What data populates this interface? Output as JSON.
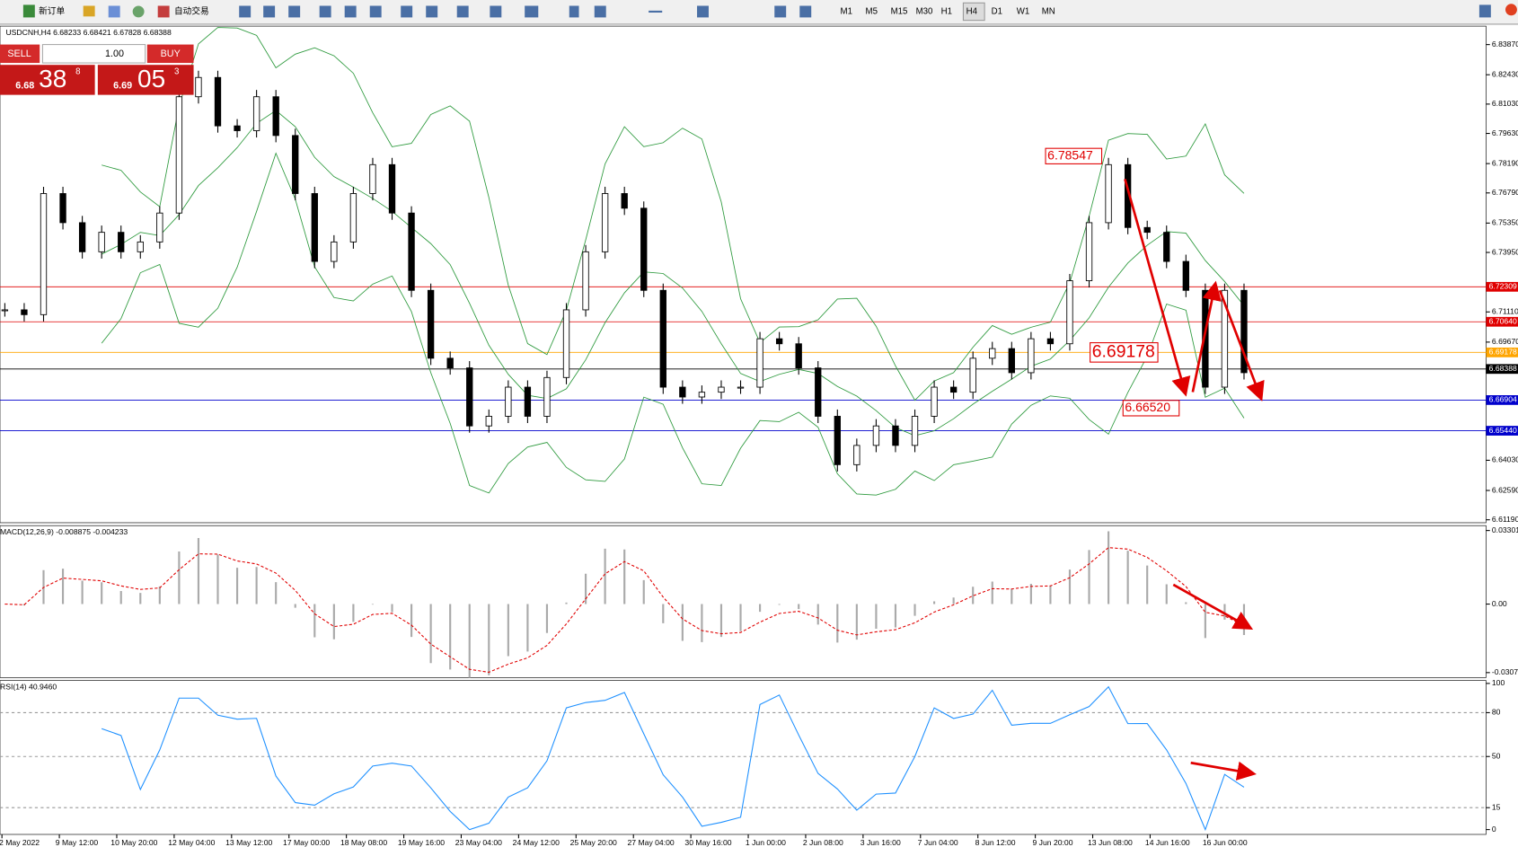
{
  "toolbar": {
    "new_order": "新订单",
    "auto_trading": "自动交易",
    "timeframes": [
      "M1",
      "M5",
      "M15",
      "M30",
      "H1",
      "H4",
      "D1",
      "W1",
      "MN"
    ]
  },
  "trade_panel": {
    "sell": "SELL",
    "buy": "BUY",
    "lots": "1.00",
    "sell_price": {
      "big": "6.68",
      "pips": "38",
      "point": "8"
    },
    "buy_price": {
      "big": "6.69",
      "pips": "05",
      "point": "3"
    }
  },
  "price_chart": {
    "header": "USDCNH,H4  6.68233 6.68421 6.67828 6.68388",
    "ylim": [
      6.6105,
      6.8475
    ],
    "yticks": [
      {
        "value": 6.8387,
        "label": "6.83870"
      },
      {
        "value": 6.8243,
        "label": "6.82430"
      },
      {
        "value": 6.8103,
        "label": "6.81030"
      },
      {
        "value": 6.7963,
        "label": "6.79630"
      },
      {
        "value": 6.7819,
        "label": "6.78190"
      },
      {
        "value": 6.7679,
        "label": "6.76790"
      },
      {
        "value": 6.7535,
        "label": "6.75350"
      },
      {
        "value": 6.7395,
        "label": "6.73950"
      },
      {
        "value": 6.7111,
        "label": "6.71110"
      },
      {
        "value": 6.6967,
        "label": "6.69670"
      },
      {
        "value": 6.6403,
        "label": "6.64030"
      },
      {
        "value": 6.6259,
        "label": "6.62590"
      },
      {
        "value": 6.6119,
        "label": "6.61190"
      }
    ],
    "closes": [
      6.7121,
      6.7098,
      6.7676,
      6.7537,
      6.7398,
      6.7491,
      6.7398,
      6.7445,
      6.7583,
      6.8138,
      6.823,
      6.7999,
      6.7976,
      6.8138,
      6.7953,
      6.7676,
      6.7352,
      6.7445,
      6.7676,
      6.7814,
      6.7583,
      6.7214,
      6.689,
      6.6844,
      6.6567,
      6.6613,
      6.6752,
      6.6613,
      6.6798,
      6.7121,
      6.7398,
      6.7676,
      6.7606,
      6.7214,
      6.6752,
      6.6705,
      6.6728,
      6.6752,
      6.6752,
      6.6983,
      6.6959,
      6.6844,
      6.6613,
      6.6382,
      6.6474,
      6.6567,
      6.6474,
      6.6613,
      6.6752,
      6.6728,
      6.689,
      6.6936,
      6.6821,
      6.6983,
      6.6959,
      6.726,
      6.7537,
      6.7814,
      6.7514,
      6.7491,
      6.7352,
      6.7214,
      6.6752,
      6.7214,
      6.6821
    ],
    "levels": [
      {
        "value": 6.72309,
        "color": "#e00000"
      },
      {
        "value": 6.7064,
        "label": "6.70640",
        "color": "#e00000"
      },
      {
        "value": 6.69178,
        "color": "#ffa500"
      },
      {
        "value": 6.68388,
        "color": "#000000"
      },
      {
        "value": 6.66904,
        "color": "#0000cc"
      },
      {
        "value": 6.6544,
        "label": "6.65440",
        "color": "#0000cc"
      }
    ],
    "annotations": [
      6.78547,
      6.69178,
      {
        "value": 6.6652,
        "label": "6.66520"
      }
    ]
  },
  "macd": {
    "label": "MACD(12,26,9) -0.008875 -0.004233",
    "ylim": [
      -0.033,
      0.0352
    ],
    "yticks": [
      0.03301,
      {
        "value": 0,
        "label": "0.00"
      },
      -0.03076
    ]
  },
  "rsi": {
    "label": "RSI(14) 40.9460",
    "ylim": [
      -3.3,
      102
    ],
    "yticks": [
      100,
      80,
      50,
      15,
      0
    ]
  },
  "time_labels": [
    "2 May 2022",
    "9 May 12:00",
    "10 May 20:00",
    "12 May 04:00",
    "13 May 12:00",
    "17 May 00:00",
    "18 May 08:00",
    "19 May 16:00",
    "23 May 04:00",
    "24 May 12:00",
    "25 May 20:00",
    "27 May 04:00",
    "30 May 16:00",
    "1 Jun 00:00",
    "2 Jun 08:00",
    "3 Jun 16:00",
    "7 Jun 04:00",
    "8 Jun 12:00",
    "9 Jun 20:00",
    "13 Jun 08:00",
    "14 Jun 16:00",
    "16 Jun 00:00"
  ]
}
